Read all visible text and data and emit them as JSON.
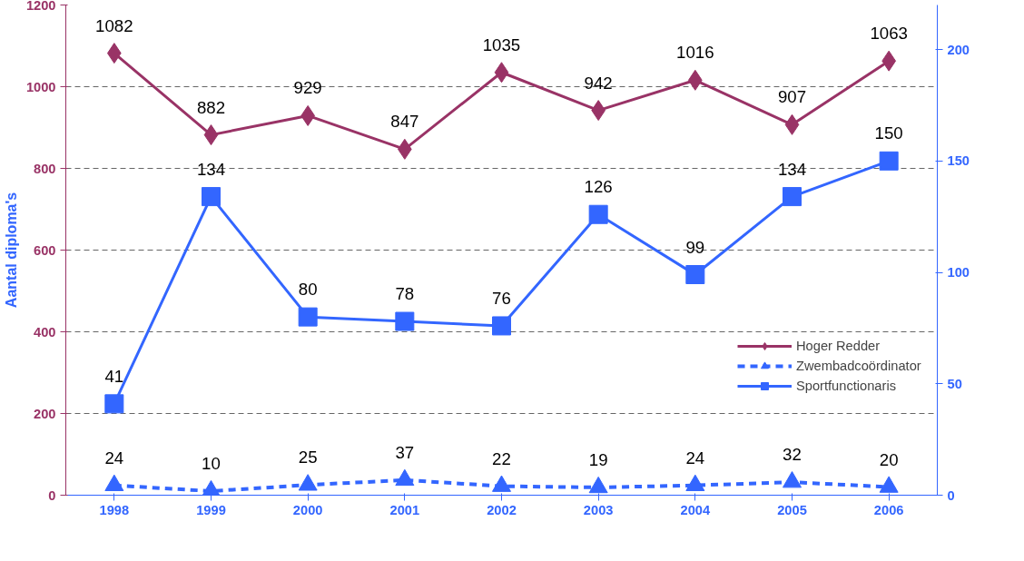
{
  "chart_data": {
    "type": "line",
    "ylabel": "Aantal diploma's",
    "categories": [
      "1998",
      "1999",
      "2000",
      "2001",
      "2002",
      "2003",
      "2004",
      "2005",
      "2006"
    ],
    "series": [
      {
        "name": "Hoger Redder",
        "color": "#993366",
        "marker": "diamond",
        "line_style": "solid",
        "values": [
          1082,
          882,
          929,
          847,
          1035,
          942,
          1016,
          907,
          1063
        ]
      },
      {
        "name": "Zwembadcoördinator",
        "color": "#3366ff",
        "marker": "triangle",
        "line_style": "dashed",
        "values": [
          24,
          10,
          25,
          37,
          22,
          19,
          24,
          32,
          20
        ]
      },
      {
        "name": "Sportfunctionaris",
        "color": "#3366ff",
        "marker": "square",
        "line_style": "solid",
        "axis": "y2",
        "values": [
          41,
          134,
          80,
          78,
          76,
          126,
          99,
          134,
          150
        ]
      }
    ],
    "ylim": [
      0,
      1200
    ],
    "yticks": [
      0,
      200,
      400,
      600,
      800,
      1000,
      1200
    ],
    "y2lim": [
      0,
      220
    ],
    "y2ticks": [
      0,
      50,
      100,
      150,
      200
    ],
    "grid": "y",
    "legend": "right",
    "data_labels": true
  }
}
